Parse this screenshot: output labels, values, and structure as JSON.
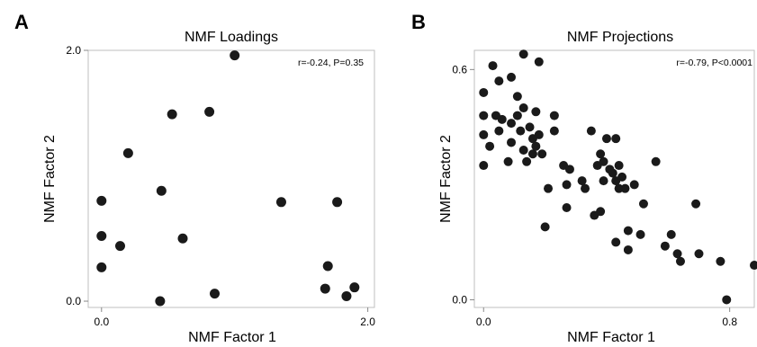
{
  "chart_data": [
    {
      "type": "scatter",
      "panel_label": "A",
      "title": "NMF Loadings",
      "xlabel": "NMF Factor 1",
      "ylabel": "NMF Factor 2",
      "annotation": "r=-0.24, P=0.35",
      "xlim": [
        -0.1,
        2.05
      ],
      "ylim": [
        -0.05,
        2.0
      ],
      "x_ticks": [
        {
          "value": 0.0,
          "label": "0.0"
        },
        {
          "value": 2.0,
          "label": "2.0"
        }
      ],
      "y_ticks": [
        {
          "value": 0.0,
          "label": "0.0"
        },
        {
          "value": 2.0,
          "label": "2.0"
        }
      ],
      "grid": false,
      "points": [
        {
          "x": 0.0,
          "y": 0.8
        },
        {
          "x": 0.0,
          "y": 0.52
        },
        {
          "x": 0.0,
          "y": 0.27
        },
        {
          "x": 0.14,
          "y": 0.44
        },
        {
          "x": 0.2,
          "y": 1.18
        },
        {
          "x": 0.45,
          "y": 0.88
        },
        {
          "x": 0.44,
          "y": 0.0
        },
        {
          "x": 0.53,
          "y": 1.49
        },
        {
          "x": 0.61,
          "y": 0.5
        },
        {
          "x": 0.81,
          "y": 1.51
        },
        {
          "x": 0.85,
          "y": 0.06
        },
        {
          "x": 1.0,
          "y": 1.96
        },
        {
          "x": 1.35,
          "y": 0.79
        },
        {
          "x": 1.68,
          "y": 0.1
        },
        {
          "x": 1.7,
          "y": 0.28
        },
        {
          "x": 1.77,
          "y": 0.79
        },
        {
          "x": 1.84,
          "y": 0.04
        },
        {
          "x": 1.9,
          "y": 0.11
        }
      ]
    },
    {
      "type": "scatter",
      "panel_label": "B",
      "title": "NMF Projections",
      "xlabel": "NMF Factor 1",
      "ylabel": "NMF Factor 2",
      "annotation": "r=-0.79, P<0.0001",
      "xlim": [
        -0.03,
        0.88
      ],
      "ylim": [
        -0.02,
        0.65
      ],
      "x_ticks": [
        {
          "value": 0.0,
          "label": "0.0"
        },
        {
          "value": 0.8,
          "label": "0.8"
        }
      ],
      "y_ticks": [
        {
          "value": 0.0,
          "label": "0.0"
        },
        {
          "value": 0.6,
          "label": "0.6"
        }
      ],
      "grid": false,
      "points": [
        {
          "x": 0.03,
          "y": 0.61
        },
        {
          "x": 0.13,
          "y": 0.64
        },
        {
          "x": 0.18,
          "y": 0.62
        },
        {
          "x": 0.05,
          "y": 0.57
        },
        {
          "x": 0.09,
          "y": 0.58
        },
        {
          "x": 0.0,
          "y": 0.54
        },
        {
          "x": 0.11,
          "y": 0.53
        },
        {
          "x": 0.13,
          "y": 0.5
        },
        {
          "x": 0.0,
          "y": 0.48
        },
        {
          "x": 0.04,
          "y": 0.48
        },
        {
          "x": 0.06,
          "y": 0.47
        },
        {
          "x": 0.09,
          "y": 0.46
        },
        {
          "x": 0.11,
          "y": 0.48
        },
        {
          "x": 0.17,
          "y": 0.49
        },
        {
          "x": 0.23,
          "y": 0.48
        },
        {
          "x": 0.0,
          "y": 0.43
        },
        {
          "x": 0.02,
          "y": 0.4
        },
        {
          "x": 0.05,
          "y": 0.44
        },
        {
          "x": 0.09,
          "y": 0.41
        },
        {
          "x": 0.12,
          "y": 0.44
        },
        {
          "x": 0.15,
          "y": 0.45
        },
        {
          "x": 0.16,
          "y": 0.42
        },
        {
          "x": 0.17,
          "y": 0.4
        },
        {
          "x": 0.18,
          "y": 0.43
        },
        {
          "x": 0.19,
          "y": 0.38
        },
        {
          "x": 0.14,
          "y": 0.36
        },
        {
          "x": 0.16,
          "y": 0.38
        },
        {
          "x": 0.13,
          "y": 0.39
        },
        {
          "x": 0.0,
          "y": 0.35
        },
        {
          "x": 0.08,
          "y": 0.36
        },
        {
          "x": 0.23,
          "y": 0.44
        },
        {
          "x": 0.26,
          "y": 0.35
        },
        {
          "x": 0.28,
          "y": 0.34
        },
        {
          "x": 0.27,
          "y": 0.3
        },
        {
          "x": 0.32,
          "y": 0.31
        },
        {
          "x": 0.33,
          "y": 0.29
        },
        {
          "x": 0.35,
          "y": 0.44
        },
        {
          "x": 0.37,
          "y": 0.35
        },
        {
          "x": 0.38,
          "y": 0.38
        },
        {
          "x": 0.39,
          "y": 0.36
        },
        {
          "x": 0.39,
          "y": 0.31
        },
        {
          "x": 0.4,
          "y": 0.42
        },
        {
          "x": 0.41,
          "y": 0.34
        },
        {
          "x": 0.42,
          "y": 0.33
        },
        {
          "x": 0.43,
          "y": 0.31
        },
        {
          "x": 0.43,
          "y": 0.42
        },
        {
          "x": 0.44,
          "y": 0.29
        },
        {
          "x": 0.44,
          "y": 0.35
        },
        {
          "x": 0.45,
          "y": 0.32
        },
        {
          "x": 0.46,
          "y": 0.29
        },
        {
          "x": 0.49,
          "y": 0.3
        },
        {
          "x": 0.21,
          "y": 0.29
        },
        {
          "x": 0.27,
          "y": 0.24
        },
        {
          "x": 0.36,
          "y": 0.22
        },
        {
          "x": 0.38,
          "y": 0.23
        },
        {
          "x": 0.47,
          "y": 0.18
        },
        {
          "x": 0.52,
          "y": 0.25
        },
        {
          "x": 0.2,
          "y": 0.19
        },
        {
          "x": 0.43,
          "y": 0.15
        },
        {
          "x": 0.51,
          "y": 0.17
        },
        {
          "x": 0.47,
          "y": 0.13
        },
        {
          "x": 0.56,
          "y": 0.36
        },
        {
          "x": 0.59,
          "y": 0.14
        },
        {
          "x": 0.61,
          "y": 0.17
        },
        {
          "x": 0.63,
          "y": 0.12
        },
        {
          "x": 0.64,
          "y": 0.1
        },
        {
          "x": 0.7,
          "y": 0.12
        },
        {
          "x": 0.69,
          "y": 0.25
        },
        {
          "x": 0.77,
          "y": 0.1
        },
        {
          "x": 0.88,
          "y": 0.09
        },
        {
          "x": 0.79,
          "y": 0.0
        }
      ]
    }
  ]
}
